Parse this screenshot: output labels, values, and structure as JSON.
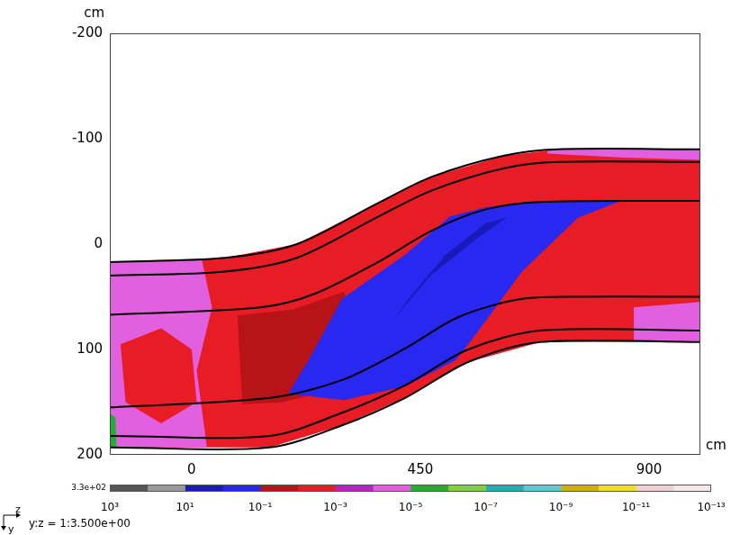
{
  "chart_data": {
    "type": "heatmap",
    "x_label": "cm",
    "y_label": "cm",
    "xlim": [
      -161,
      1001
    ],
    "xticks": [
      0,
      450,
      900
    ],
    "ylim": [
      200,
      -200
    ],
    "yticks": [
      -200,
      -100,
      0,
      100,
      200
    ],
    "grid": false,
    "regions": [
      {
        "value": 0.005,
        "points": [
          [
            -161,
            17
          ],
          [
            66,
            13
          ],
          [
            207,
            0
          ],
          [
            367,
            -39
          ],
          [
            473,
            -64
          ],
          [
            615,
            -84
          ],
          [
            721,
            -90
          ],
          [
            1001,
            -90
          ],
          [
            1001,
            93
          ],
          [
            686,
            93
          ],
          [
            544,
            112
          ],
          [
            420,
            146
          ],
          [
            296,
            172
          ],
          [
            154,
            193
          ],
          [
            -161,
            193
          ]
        ]
      },
      {
        "value": 3e-05,
        "points": [
          [
            -161,
            17
          ],
          [
            20,
            15
          ],
          [
            40,
            60
          ],
          [
            10,
            120
          ],
          [
            30,
            193
          ],
          [
            -161,
            193
          ]
        ]
      },
      {
        "value": 0.003,
        "points": [
          [
            -140,
            95
          ],
          [
            -60,
            80
          ],
          [
            0,
            100
          ],
          [
            10,
            150
          ],
          [
            -60,
            170
          ],
          [
            -130,
            150
          ]
        ]
      },
      {
        "value": 5e-06,
        "points": [
          [
            -161,
            160
          ],
          [
            -150,
            165
          ],
          [
            -148,
            193
          ],
          [
            -161,
            193
          ]
        ]
      },
      {
        "value": 0.02,
        "points": [
          [
            90,
            68
          ],
          [
            200,
            62
          ],
          [
            300,
            45
          ],
          [
            330,
            100
          ],
          [
            260,
            140
          ],
          [
            180,
            150
          ],
          [
            100,
            152
          ]
        ]
      },
      {
        "value": 0.3,
        "points": [
          [
            190,
            142
          ],
          [
            300,
            148
          ],
          [
            420,
            135
          ],
          [
            520,
            110
          ],
          [
            560,
            85
          ],
          [
            650,
            26
          ],
          [
            760,
            -25
          ],
          [
            845,
            -41
          ],
          [
            686,
            -41
          ],
          [
            580,
            -35
          ],
          [
            508,
            -26
          ],
          [
            420,
            10
          ],
          [
            296,
            52
          ],
          [
            230,
            110
          ]
        ]
      },
      {
        "value": 3,
        "points": [
          [
            400,
            70
          ],
          [
            470,
            30
          ],
          [
            560,
            -5
          ],
          [
            620,
            -25
          ],
          [
            580,
            -20
          ],
          [
            500,
            10
          ],
          [
            430,
            50
          ]
        ]
      },
      {
        "value": 5e-05,
        "points": [
          [
            700,
            -90
          ],
          [
            1001,
            -90
          ],
          [
            1001,
            -80
          ],
          [
            850,
            -82
          ],
          [
            700,
            -86
          ]
        ]
      },
      {
        "value": 5e-05,
        "points": [
          [
            870,
            60
          ],
          [
            1001,
            55
          ],
          [
            1001,
            93
          ],
          [
            870,
            93
          ]
        ]
      }
    ],
    "walls": [
      {
        "color": "#000000",
        "points": [
          [
            -161,
            17
          ],
          [
            66,
            13
          ],
          [
            207,
            0
          ],
          [
            367,
            -39
          ],
          [
            473,
            -64
          ],
          [
            615,
            -84
          ],
          [
            721,
            -90
          ],
          [
            1001,
            -90
          ]
        ]
      },
      {
        "color": "#000000",
        "points": [
          [
            -161,
            30
          ],
          [
            66,
            26
          ],
          [
            207,
            13
          ],
          [
            367,
            -26
          ],
          [
            473,
            -51
          ],
          [
            615,
            -72
          ],
          [
            721,
            -78
          ],
          [
            1001,
            -78
          ]
        ]
      },
      {
        "color": "#000000",
        "points": [
          [
            -161,
            67
          ],
          [
            136,
            60
          ],
          [
            243,
            47
          ],
          [
            367,
            17
          ],
          [
            473,
            -13
          ],
          [
            579,
            -33
          ],
          [
            686,
            -40
          ],
          [
            1001,
            -41
          ]
        ]
      },
      {
        "color": "#000000",
        "points": [
          [
            -161,
            155
          ],
          [
            154,
            146
          ],
          [
            296,
            129
          ],
          [
            420,
            99
          ],
          [
            526,
            69
          ],
          [
            650,
            52
          ],
          [
            774,
            50
          ],
          [
            1001,
            50
          ]
        ]
      },
      {
        "color": "#000000",
        "points": [
          [
            -161,
            182
          ],
          [
            154,
            182
          ],
          [
            296,
            160
          ],
          [
            420,
            134
          ],
          [
            544,
            100
          ],
          [
            686,
            82
          ],
          [
            1001,
            82
          ]
        ]
      },
      {
        "color": "#000000",
        "points": [
          [
            -161,
            193
          ],
          [
            154,
            193
          ],
          [
            296,
            172
          ],
          [
            420,
            146
          ],
          [
            544,
            112
          ],
          [
            686,
            93
          ],
          [
            1001,
            93
          ]
        ]
      }
    ],
    "colorbar": {
      "range": [
        1000,
        1e-13
      ],
      "max": {
        "value": 330,
        "label": "3.3e+02"
      },
      "ticks": [
        {
          "value": 1000,
          "label": "10³"
        },
        {
          "value": 10,
          "label": "10¹"
        },
        {
          "value": 0.1,
          "label": "10⁻¹"
        },
        {
          "value": 0.001,
          "label": "10⁻³"
        },
        {
          "value": 1e-05,
          "label": "10⁻⁵"
        },
        {
          "value": 1e-07,
          "label": "10⁻⁷"
        },
        {
          "value": 1e-09,
          "label": "10⁻⁹"
        },
        {
          "value": 1e-11,
          "label": "10⁻¹¹"
        },
        {
          "value": 1e-13,
          "label": "10⁻¹³"
        }
      ],
      "colors": [
        "#555555",
        "#999999",
        "#1a1ab8",
        "#2828f0",
        "#b81418",
        "#e81c24",
        "#c020c0",
        "#e060e0",
        "#20b030",
        "#80d040",
        "#20b0b0",
        "#50d0d0",
        "#d0b000",
        "#f0e020",
        "#f0d0d0",
        "#f8e8e8"
      ]
    },
    "axis_directions": {
      "horizontal": "z",
      "vertical": "y"
    },
    "axis_note": "y:z = 1:3.500e+00"
  }
}
